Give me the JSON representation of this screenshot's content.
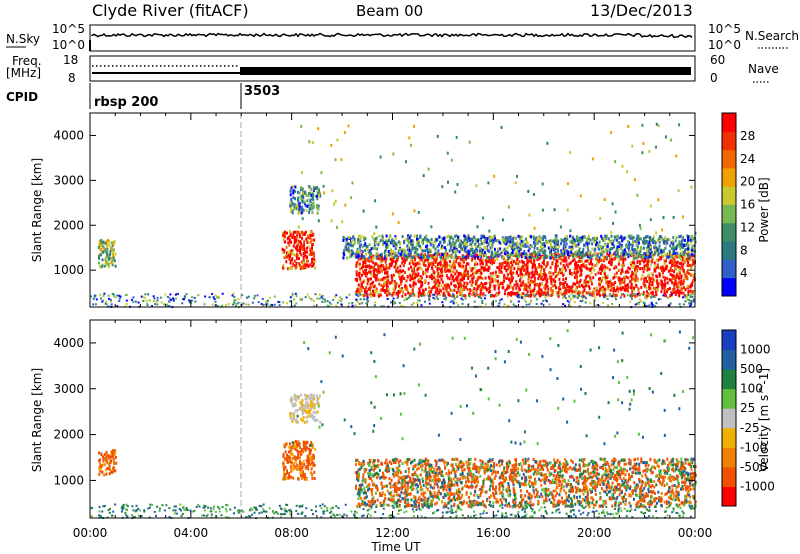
{
  "header": {
    "station": "Clyde River (fitACF)",
    "beam": "Beam 00",
    "date": "13/Dec/2013"
  },
  "noise_panel": {
    "left_label": "N.Sky",
    "right_label": "N.Search",
    "left_ticks": [
      "10^5",
      "10^0"
    ],
    "right_ticks": [
      "10^5",
      "10^0"
    ]
  },
  "freq_panel": {
    "left_label_1": "Freq.",
    "left_label_2": "[MHz]",
    "right_label": "Nave",
    "left_ticks": [
      "18",
      "8"
    ],
    "right_ticks": [
      "60",
      "0"
    ]
  },
  "cpid": {
    "label": "CPID",
    "segments": [
      {
        "name": "rbsp 200",
        "start_hour": 0
      },
      {
        "name": "3503",
        "start_hour": 6
      }
    ]
  },
  "time_axis": {
    "ticks": [
      "00:00",
      "04:00",
      "08:00",
      "12:00",
      "16:00",
      "20:00",
      "00:00"
    ],
    "label": "Time UT"
  },
  "range_axis": {
    "label": "Slant Range [km]",
    "ticks": [
      "1000",
      "2000",
      "3000",
      "4000"
    ]
  },
  "chart_data": [
    {
      "type": "heatmap",
      "title": "",
      "xlabel": "Time UT",
      "ylabel": "Slant Range [km]",
      "xlim": [
        0,
        24
      ],
      "ylim": [
        180,
        4500
      ],
      "colorbar": {
        "label": "Power [dB]",
        "ticks": [
          "28",
          "24",
          "20",
          "16",
          "12",
          "8",
          "4"
        ],
        "colors": [
          "#0000ff",
          "#3060c8",
          "#2c7a80",
          "#3c8f64",
          "#78b850",
          "#c8c830",
          "#f0a000",
          "#f06800",
          "#f03000",
          "#ff0000"
        ]
      },
      "regions": [
        {
          "t": [
            0.3,
            1.0
          ],
          "range": [
            1100,
            1700
          ],
          "level": "mid"
        },
        {
          "t": [
            7.6,
            8.9
          ],
          "range": [
            1050,
            1900
          ],
          "level": "high"
        },
        {
          "t": [
            7.9,
            9.1
          ],
          "range": [
            2300,
            2900
          ],
          "level": "low"
        },
        {
          "t": [
            10.5,
            24.0
          ],
          "range": [
            450,
            1400
          ],
          "level": "high"
        },
        {
          "t": [
            10.0,
            24.0
          ],
          "range": [
            1300,
            1800
          ],
          "level": "low"
        }
      ]
    },
    {
      "type": "heatmap",
      "title": "",
      "xlabel": "Time UT",
      "ylabel": "Slant Range [km]",
      "xlim": [
        0,
        24
      ],
      "ylim": [
        180,
        4500
      ],
      "colorbar": {
        "label": "Velocity [m s^-1]",
        "ticks": [
          "1000",
          "500",
          "100",
          "25",
          "-25",
          "-100",
          "-500",
          "-1000"
        ],
        "colors": [
          "#ff0000",
          "#f05000",
          "#f08000",
          "#f0b000",
          "#c0c0c0",
          "#60c040",
          "#208040",
          "#2060a0",
          "#1840c0"
        ]
      },
      "regions": [
        {
          "t": [
            0.3,
            1.0
          ],
          "range": [
            1150,
            1700
          ],
          "level": "negative"
        },
        {
          "t": [
            7.6,
            8.9
          ],
          "range": [
            1050,
            1900
          ],
          "level": "negative"
        },
        {
          "t": [
            7.9,
            9.1
          ],
          "range": [
            2300,
            2900
          ],
          "level": "near-zero"
        },
        {
          "t": [
            10.5,
            24.0
          ],
          "range": [
            450,
            1500
          ],
          "level": "mixed"
        }
      ]
    }
  ],
  "colors": {
    "trace": "#000000",
    "dashed_divider": "#aaaaaa"
  }
}
